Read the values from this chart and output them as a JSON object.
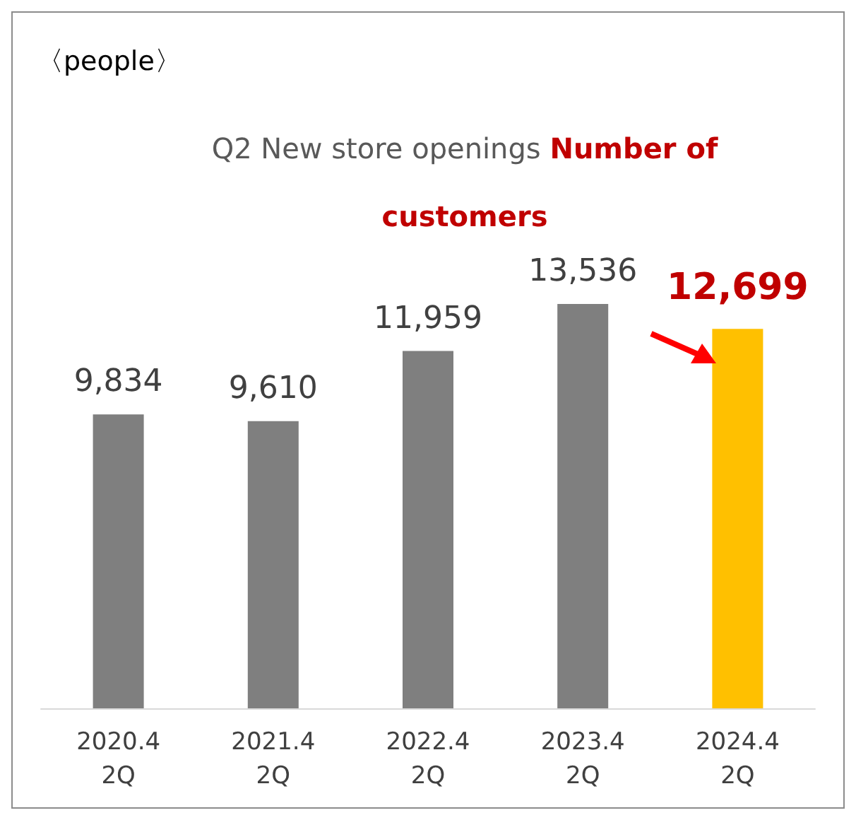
{
  "chart_data": {
    "type": "bar",
    "title": "Q2 New store openings",
    "subtitle": "Number of customers",
    "annotations": [
      "〈people〉"
    ],
    "categories": [
      "2020.4\n2Q",
      "2021.4\n2Q",
      "2022.4\n2Q",
      "2023.4\n2Q",
      "2024.4\n2Q"
    ],
    "values": [
      9834,
      9610,
      11959,
      13536,
      12699
    ],
    "value_labels": [
      "9,834",
      "9,610",
      "11,959",
      "13,536",
      "12,699"
    ],
    "colors": [
      "#7f7f7f",
      "#7f7f7f",
      "#7f7f7f",
      "#7f7f7f",
      "#ffc000"
    ]
  }
}
